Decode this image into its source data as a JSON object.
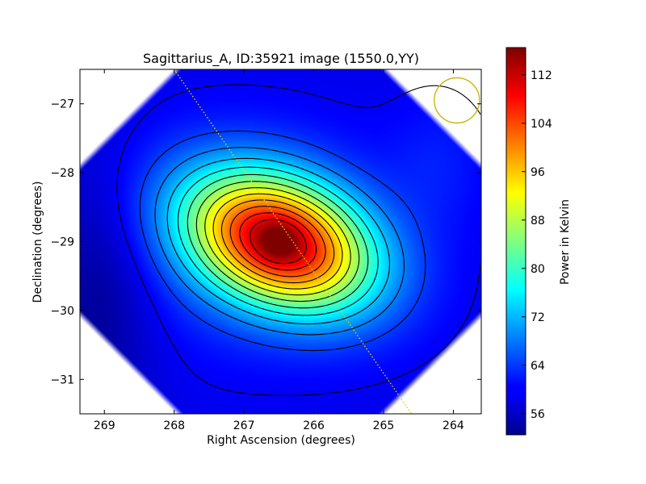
{
  "chart_data": {
    "type": "heatmap",
    "title": "Sagittarius_A, ID:35921 image (1550.0,YY)",
    "xlabel": "Right Ascension (degrees)",
    "ylabel": "Declination (degrees)",
    "x_range": [
      269.35,
      263.6
    ],
    "y_range": [
      -31.5,
      -26.5
    ],
    "x_ticks": [
      269,
      268,
      267,
      266,
      265,
      264
    ],
    "y_ticks": [
      -27,
      -28,
      -29,
      -30,
      -31
    ],
    "x_tick_labels": [
      "269",
      "268",
      "267",
      "266",
      "265",
      "264"
    ],
    "y_tick_labels": [
      "−27",
      "−28",
      "−29",
      "−30",
      "−31"
    ],
    "colorbar": {
      "label": "Power in Kelvin",
      "range": [
        52.5,
        116.5
      ],
      "ticks": [
        56,
        64,
        72,
        80,
        88,
        96,
        104,
        112
      ],
      "colormap": "jet"
    },
    "peak": {
      "ra": 266.5,
      "dec": -29.0,
      "value": 116
    },
    "background_value": 59,
    "beam_circle_center": {
      "ra": 263.95,
      "dec": -26.95
    },
    "scan_track": [
      [
        268.0,
        -26.5
      ],
      [
        264.6,
        -31.5
      ]
    ],
    "grid": false,
    "colors": {
      "contour": "#000000",
      "beam_circle": "#c8b400",
      "scan_track": "#d7d700",
      "frame": "#000000"
    }
  }
}
